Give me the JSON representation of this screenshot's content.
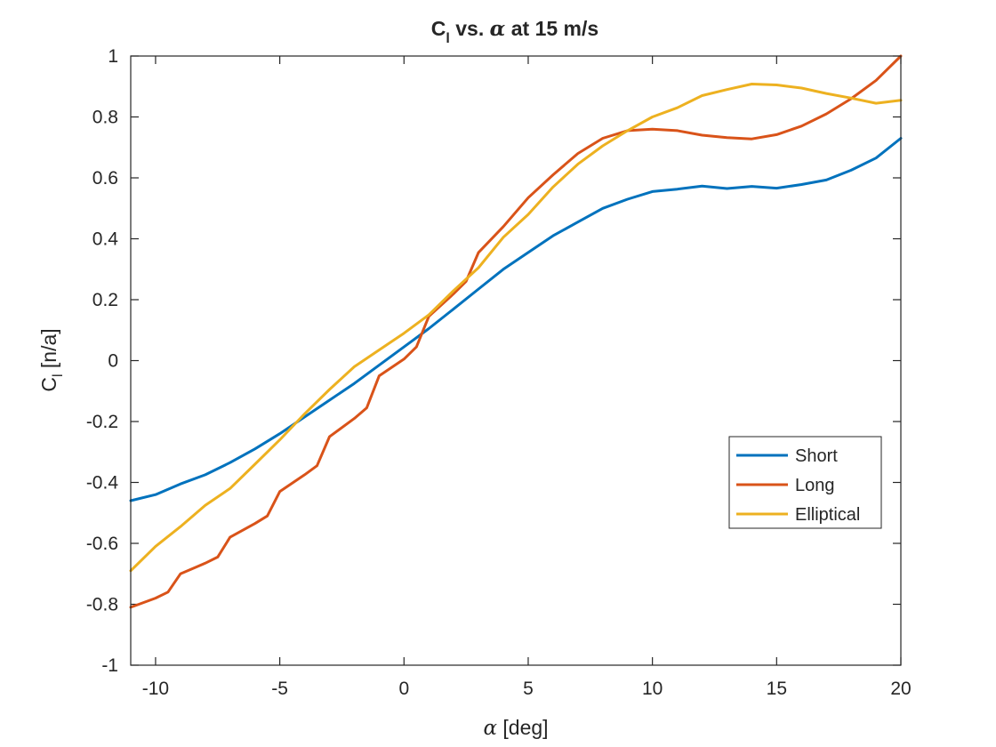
{
  "chart_data": {
    "type": "line",
    "title": {
      "prefix": "C",
      "sub": "l",
      "middle": " vs. ",
      "symbol": "α",
      "suffix": " at 15 m/s"
    },
    "xlabel": {
      "symbol": "α",
      "text": " [deg]"
    },
    "ylabel": {
      "prefix": "C",
      "sub": "l",
      "text": " [n/a]"
    },
    "xlim": [
      -11,
      20
    ],
    "ylim": [
      -1,
      1
    ],
    "xticks": [
      -10,
      -5,
      0,
      5,
      10,
      15,
      20
    ],
    "yticks": [
      -1,
      -0.8,
      -0.6,
      -0.4,
      -0.2,
      0,
      0.2,
      0.4,
      0.6,
      0.8,
      1
    ],
    "ytick_labels": [
      "-1",
      "-0.8",
      "-0.6",
      "-0.4",
      "-0.2",
      "0",
      "0.2",
      "0.4",
      "0.6",
      "0.8",
      "1"
    ],
    "grid": false,
    "legend_position": "lower-right",
    "series": [
      {
        "name": "Short",
        "color": "#0072BD",
        "x": [
          -11,
          -10,
          -9,
          -8,
          -7,
          -6,
          -5,
          -4,
          -3,
          -2,
          -1,
          0,
          1,
          2,
          3,
          4,
          5,
          6,
          7,
          8,
          9,
          10,
          11,
          12,
          13,
          14,
          15,
          16,
          17,
          18,
          19,
          20
        ],
        "y": [
          -0.46,
          -0.44,
          -0.405,
          -0.375,
          -0.335,
          -0.29,
          -0.24,
          -0.185,
          -0.13,
          -0.075,
          -0.015,
          0.045,
          0.105,
          0.17,
          0.235,
          0.3,
          0.355,
          0.41,
          0.455,
          0.5,
          0.53,
          0.555,
          0.563,
          0.573,
          0.565,
          0.572,
          0.566,
          0.578,
          0.593,
          0.625,
          0.665,
          0.73
        ]
      },
      {
        "name": "Long",
        "color": "#D95319",
        "x": [
          -11,
          -10,
          -9.5,
          -9,
          -8,
          -7.5,
          -7,
          -6,
          -5.5,
          -5,
          -4,
          -3.5,
          -3,
          -2,
          -1.5,
          -1,
          0,
          0.5,
          1,
          2,
          2.5,
          3,
          4,
          5,
          6,
          7,
          8,
          9,
          10,
          11,
          12,
          13,
          14,
          15,
          16,
          17,
          18,
          19,
          20
        ],
        "y": [
          -0.81,
          -0.78,
          -0.76,
          -0.7,
          -0.665,
          -0.645,
          -0.58,
          -0.535,
          -0.51,
          -0.43,
          -0.375,
          -0.345,
          -0.25,
          -0.19,
          -0.155,
          -0.05,
          0.005,
          0.045,
          0.145,
          0.22,
          0.26,
          0.355,
          0.44,
          0.535,
          0.61,
          0.68,
          0.73,
          0.755,
          0.76,
          0.755,
          0.74,
          0.732,
          0.728,
          0.742,
          0.77,
          0.81,
          0.86,
          0.92,
          1.0
        ]
      },
      {
        "name": "Elliptical",
        "color": "#EDB120",
        "x": [
          -11,
          -10,
          -9,
          -8,
          -7,
          -6,
          -5,
          -4,
          -3,
          -2,
          -1,
          0,
          1,
          2,
          3,
          4,
          5,
          6,
          7,
          8,
          9,
          10,
          11,
          12,
          13,
          14,
          15,
          16,
          17,
          18,
          19,
          20
        ],
        "y": [
          -0.69,
          -0.61,
          -0.545,
          -0.475,
          -0.42,
          -0.34,
          -0.26,
          -0.175,
          -0.095,
          -0.02,
          0.035,
          0.09,
          0.15,
          0.23,
          0.305,
          0.405,
          0.48,
          0.57,
          0.645,
          0.705,
          0.755,
          0.8,
          0.83,
          0.87,
          0.89,
          0.908,
          0.905,
          0.895,
          0.877,
          0.862,
          0.845,
          0.855
        ]
      }
    ]
  }
}
